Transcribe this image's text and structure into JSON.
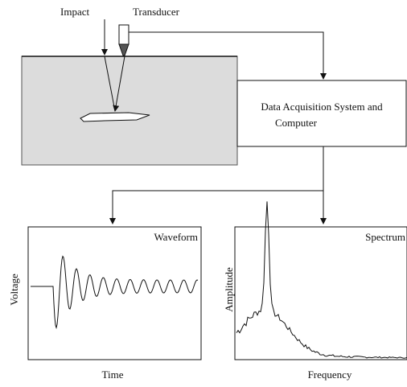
{
  "labels": {
    "impact": "Impact",
    "transducer": "Transducer"
  },
  "system": {
    "line1": "Data Acquisition System and",
    "line2": "Computer"
  },
  "waveform": {
    "title": "Waveform",
    "y_label": "Voltage",
    "x_label": "Time"
  },
  "spectrum": {
    "title": "Spectrum",
    "y_label": "Amplitude",
    "x_label": "Frequency"
  }
}
